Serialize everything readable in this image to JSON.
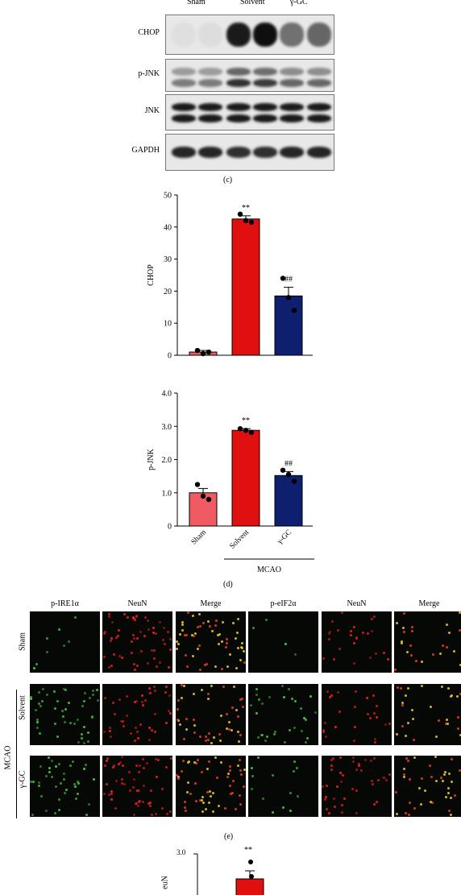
{
  "panel_c": {
    "label": "(c)",
    "group_labels": [
      "Sham",
      "Solvent",
      "γ-GC"
    ],
    "rows": [
      {
        "name": "CHOP",
        "intensity": [
          0.04,
          0.05,
          0.95,
          1.0,
          0.55,
          0.6
        ]
      },
      {
        "name": "p-JNK",
        "intensity": [
          0.5,
          0.5,
          0.85,
          0.8,
          0.6,
          0.6
        ]
      },
      {
        "name": "JNK",
        "intensity": [
          0.95,
          0.95,
          0.95,
          0.95,
          0.95,
          0.95
        ]
      },
      {
        "name": "GAPDH",
        "intensity": [
          0.9,
          0.9,
          0.85,
          0.85,
          0.9,
          0.9
        ]
      }
    ]
  },
  "panel_d": {
    "label": "(d)",
    "group_label": "MCAO",
    "colors": {
      "sham": "#f05a63",
      "solvent": "#e01010",
      "ggc": "#0d1f6e"
    }
  },
  "chart_data": [
    {
      "type": "bar",
      "ylabel": "CHOP",
      "categories": [
        "Sham",
        "Solvent",
        "γ-GC"
      ],
      "values": [
        1.0,
        42.5,
        18.5
      ],
      "errors": [
        0.5,
        1.0,
        2.7
      ],
      "points": [
        [
          1.5,
          0.5,
          1.0
        ],
        [
          44.0,
          42.0,
          41.5
        ],
        [
          24.0,
          18.0,
          14.0
        ]
      ],
      "annotations": [
        "",
        "**",
        "##"
      ],
      "ylim": [
        0,
        50
      ],
      "yticks": [
        "0",
        "10",
        "20",
        "30",
        "40",
        "50"
      ]
    },
    {
      "type": "bar",
      "ylabel": "p-JNK",
      "categories": [
        "Sham",
        "Solvent",
        "γ-GC"
      ],
      "values": [
        1.0,
        2.88,
        1.52
      ],
      "errors": [
        0.13,
        0.05,
        0.12
      ],
      "points": [
        [
          1.25,
          0.9,
          0.8
        ],
        [
          2.93,
          2.88,
          2.82
        ],
        [
          1.68,
          1.55,
          1.35
        ]
      ],
      "annotations": [
        "",
        "**",
        "##"
      ],
      "ylim": [
        0,
        4.0
      ],
      "yticks": [
        "0",
        "1.0",
        "2.0",
        "3.0",
        "4.0"
      ]
    }
  ],
  "panel_e": {
    "label": "(e)",
    "headers": [
      "p-IRE1α",
      "NeuN",
      "Merge",
      "p-eIF2α",
      "NeuN",
      "Merge"
    ],
    "row_labels": [
      "Sham",
      "Solvent",
      "γ-GC"
    ],
    "group_label": "MCAO"
  },
  "panel_f": {
    "ytick_top": "3.0",
    "annotation": "**",
    "ylabel_partial": "euN"
  }
}
